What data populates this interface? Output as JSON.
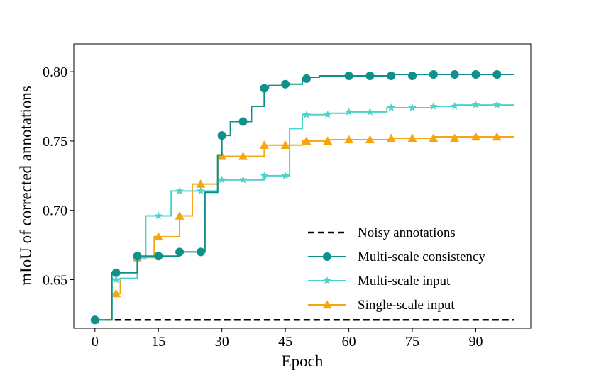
{
  "chart_data": {
    "type": "line",
    "title": "",
    "xlabel": "Epoch",
    "ylabel": "mIoU of corrected annotations",
    "xlim": [
      -5,
      103
    ],
    "ylim": [
      0.615,
      0.82
    ],
    "xticks": [
      0,
      15,
      30,
      45,
      60,
      75,
      90
    ],
    "xtick_labels": [
      "0",
      "15",
      "30",
      "45",
      "60",
      "75",
      "90"
    ],
    "yticks": [
      0.65,
      0.7,
      0.75,
      0.8
    ],
    "ytick_labels": [
      "0.65",
      "0.70",
      "0.75",
      "0.80"
    ],
    "grid": false,
    "legend_position": "lower-right",
    "series": [
      {
        "name": "Noisy annotations",
        "color": "#000000",
        "style": "dashed",
        "marker": "none",
        "line_x": [
          0,
          99
        ],
        "line_y": [
          0.621,
          0.621
        ],
        "marker_x": [],
        "marker_y": []
      },
      {
        "name": "Multi-scale consistency",
        "color": "#10908a",
        "style": "solid-step",
        "marker": "circle",
        "line_x": [
          0,
          4,
          4,
          10,
          10,
          15,
          15,
          20,
          20,
          25,
          25,
          26,
          26,
          29,
          29,
          30,
          30,
          32,
          32,
          35,
          35,
          37,
          37,
          40,
          40,
          41,
          41,
          45,
          45,
          49,
          49,
          50,
          50,
          53,
          53,
          60,
          60,
          70,
          70,
          80,
          80,
          90,
          90,
          99
        ],
        "line_y": [
          0.621,
          0.621,
          0.655,
          0.655,
          0.667,
          0.667,
          0.667,
          0.667,
          0.67,
          0.67,
          0.67,
          0.67,
          0.713,
          0.713,
          0.74,
          0.74,
          0.754,
          0.754,
          0.764,
          0.764,
          0.764,
          0.764,
          0.775,
          0.775,
          0.788,
          0.788,
          0.79,
          0.79,
          0.791,
          0.791,
          0.795,
          0.795,
          0.796,
          0.796,
          0.797,
          0.797,
          0.797,
          0.797,
          0.798,
          0.798,
          0.798,
          0.798,
          0.798,
          0.798
        ],
        "marker_x": [
          0,
          5,
          10,
          15,
          20,
          25,
          30,
          35,
          40,
          45,
          50,
          60,
          65,
          70,
          75,
          80,
          85,
          90,
          95
        ],
        "marker_y": [
          0.621,
          0.655,
          0.667,
          0.667,
          0.67,
          0.67,
          0.754,
          0.764,
          0.788,
          0.791,
          0.795,
          0.797,
          0.797,
          0.797,
          0.797,
          0.798,
          0.798,
          0.798,
          0.798
        ]
      },
      {
        "name": "Multi-scale input",
        "color": "#4fd1cc",
        "style": "solid-step",
        "marker": "star",
        "line_x": [
          0,
          4,
          4,
          6,
          6,
          10,
          10,
          12,
          12,
          18,
          18,
          25,
          25,
          29,
          29,
          40,
          40,
          46,
          46,
          49,
          49,
          55,
          55,
          60,
          60,
          69,
          69,
          80,
          80,
          85,
          85,
          99
        ],
        "line_y": [
          0.621,
          0.621,
          0.65,
          0.65,
          0.651,
          0.651,
          0.665,
          0.665,
          0.696,
          0.696,
          0.714,
          0.714,
          0.714,
          0.714,
          0.722,
          0.722,
          0.725,
          0.725,
          0.759,
          0.759,
          0.769,
          0.769,
          0.77,
          0.77,
          0.771,
          0.771,
          0.774,
          0.774,
          0.775,
          0.775,
          0.776,
          0.776
        ],
        "marker_x": [
          0,
          5,
          10,
          15,
          20,
          25,
          30,
          35,
          40,
          45,
          50,
          55,
          60,
          65,
          70,
          75,
          80,
          85,
          90,
          95
        ],
        "marker_y": [
          0.621,
          0.65,
          0.665,
          0.696,
          0.714,
          0.714,
          0.722,
          0.722,
          0.725,
          0.725,
          0.769,
          0.769,
          0.771,
          0.771,
          0.774,
          0.774,
          0.775,
          0.775,
          0.776,
          0.776
        ]
      },
      {
        "name": "Single-scale input",
        "color": "#f5a510",
        "style": "solid-step",
        "marker": "triangle",
        "line_x": [
          0,
          4,
          4,
          6,
          6,
          10,
          10,
          14,
          14,
          20,
          20,
          23,
          23,
          25,
          25,
          29,
          29,
          40,
          40,
          49,
          49,
          55,
          55,
          70,
          70,
          80,
          80,
          90,
          90,
          99
        ],
        "line_y": [
          0.621,
          0.621,
          0.64,
          0.64,
          0.651,
          0.651,
          0.666,
          0.666,
          0.681,
          0.681,
          0.696,
          0.696,
          0.719,
          0.719,
          0.719,
          0.719,
          0.739,
          0.739,
          0.747,
          0.747,
          0.75,
          0.75,
          0.751,
          0.751,
          0.752,
          0.752,
          0.753,
          0.753,
          0.753,
          0.753
        ],
        "marker_x": [
          0,
          5,
          10,
          15,
          20,
          25,
          30,
          35,
          40,
          45,
          50,
          55,
          60,
          65,
          70,
          75,
          80,
          85,
          90,
          95
        ],
        "marker_y": [
          0.621,
          0.64,
          0.666,
          0.681,
          0.696,
          0.719,
          0.739,
          0.739,
          0.747,
          0.747,
          0.75,
          0.75,
          0.751,
          0.751,
          0.752,
          0.752,
          0.752,
          0.752,
          0.753,
          0.753
        ]
      }
    ]
  }
}
